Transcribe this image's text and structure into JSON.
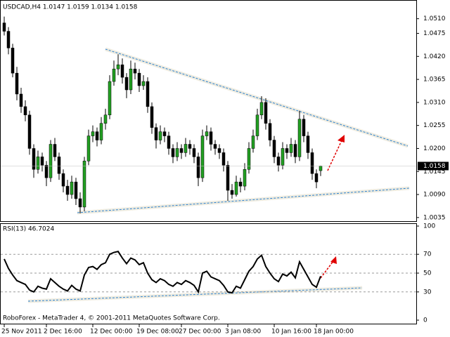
{
  "chart_data": [
    {
      "type": "candlestick",
      "header": "USDCAD,H4  1.0147 1.0159 1.0134 1.0158",
      "categories": [
        "25 Nov 2011",
        null,
        null,
        null,
        null,
        null,
        null,
        null,
        null,
        null,
        "2 Dec 16:00",
        null,
        null,
        null,
        null,
        null,
        null,
        null,
        null,
        null,
        null,
        "12 Dec 00:00",
        null,
        null,
        null,
        null,
        null,
        null,
        null,
        null,
        null,
        null,
        "19 Dec 08:00",
        null,
        null,
        null,
        null,
        null,
        null,
        null,
        null,
        null,
        "27 Dec 00:00",
        null,
        null,
        null,
        null,
        null,
        null,
        null,
        null,
        null,
        null,
        "3 Jan 08:00",
        null,
        null,
        null,
        null,
        null,
        null,
        null,
        null,
        null,
        null,
        "10 Jan 16:00",
        null,
        null,
        null,
        null,
        null,
        null,
        null,
        null,
        null,
        "18 Jan 00:00",
        null
      ],
      "open": [
        1.05,
        1.048,
        1.044,
        1.038,
        1.033,
        1.03,
        1.028,
        1.02,
        1.015,
        1.018,
        1.016,
        1.013,
        1.021,
        1.018,
        1.014,
        1.011,
        1.009,
        1.012,
        1.008,
        1.006,
        1.017,
        1.023,
        1.024,
        1.022,
        1.026,
        1.028,
        1.036,
        1.039,
        1.04,
        1.037,
        1.034,
        1.039,
        1.038,
        1.035,
        1.036,
        1.03,
        1.025,
        1.022,
        1.024,
        1.023,
        1.02,
        1.018,
        1.02,
        1.019,
        1.021,
        1.02,
        1.018,
        1.013,
        1.023,
        1.024,
        1.021,
        1.02,
        1.019,
        1.016,
        1.01,
        1.009,
        1.012,
        1.011,
        1.015,
        1.02,
        1.023,
        1.028,
        1.031,
        1.026,
        1.022,
        1.018,
        1.016,
        1.02,
        1.019,
        1.021,
        1.018,
        1.027,
        1.023,
        1.019,
        1.014,
        1.0147
      ],
      "high": [
        1.0515,
        1.049,
        1.045,
        1.0395,
        1.0345,
        1.0315,
        1.029,
        1.021,
        1.0195,
        1.019,
        1.017,
        1.022,
        1.0225,
        1.019,
        1.015,
        1.0125,
        1.0135,
        1.013,
        1.0095,
        1.018,
        1.0245,
        1.0255,
        1.025,
        1.0275,
        1.0295,
        1.0375,
        1.041,
        1.0425,
        1.0415,
        1.038,
        1.041,
        1.0405,
        1.039,
        1.0375,
        1.037,
        1.031,
        1.026,
        1.0255,
        1.025,
        1.024,
        1.021,
        1.0215,
        1.021,
        1.0225,
        1.022,
        1.021,
        1.019,
        1.0245,
        1.0255,
        1.025,
        1.022,
        1.021,
        1.02,
        1.017,
        1.0115,
        1.0135,
        1.013,
        1.0165,
        1.0215,
        1.0245,
        1.0295,
        1.0325,
        1.032,
        1.027,
        1.023,
        1.019,
        1.0215,
        1.021,
        1.0225,
        1.022,
        1.029,
        1.028,
        1.024,
        1.02,
        1.015,
        1.0159
      ],
      "low": [
        1.047,
        1.0425,
        1.037,
        1.0315,
        1.0285,
        1.0265,
        1.0185,
        1.013,
        1.014,
        1.0145,
        1.011,
        1.012,
        1.017,
        1.0125,
        1.0095,
        1.0075,
        1.008,
        1.0065,
        1.0045,
        1.005,
        1.016,
        1.0215,
        1.0205,
        1.021,
        1.0245,
        1.027,
        1.035,
        1.0375,
        1.0355,
        1.032,
        1.033,
        1.0365,
        1.0335,
        1.034,
        1.0285,
        1.0235,
        1.02,
        1.021,
        1.0215,
        1.0185,
        1.0165,
        1.017,
        1.0175,
        1.018,
        1.0185,
        1.0165,
        1.011,
        1.012,
        1.022,
        1.0195,
        1.0185,
        1.0175,
        1.0145,
        1.0075,
        1.008,
        1.0085,
        1.0095,
        1.01,
        1.014,
        1.019,
        1.022,
        1.027,
        1.0245,
        1.0205,
        1.0165,
        1.0145,
        1.015,
        1.0175,
        1.018,
        1.0165,
        1.017,
        1.0215,
        1.0175,
        1.0125,
        1.0105,
        1.0134
      ],
      "close": [
        1.048,
        1.044,
        1.038,
        1.033,
        1.03,
        1.028,
        1.02,
        1.015,
        1.018,
        1.016,
        1.013,
        1.021,
        1.018,
        1.014,
        1.011,
        1.009,
        1.012,
        1.008,
        1.006,
        1.017,
        1.023,
        1.024,
        1.022,
        1.026,
        1.028,
        1.036,
        1.039,
        1.04,
        1.037,
        1.034,
        1.039,
        1.038,
        1.035,
        1.036,
        1.03,
        1.025,
        1.022,
        1.024,
        1.023,
        1.02,
        1.018,
        1.02,
        1.019,
        1.021,
        1.02,
        1.018,
        1.013,
        1.023,
        1.024,
        1.021,
        1.02,
        1.019,
        1.016,
        1.01,
        1.009,
        1.012,
        1.011,
        1.015,
        1.02,
        1.023,
        1.028,
        1.031,
        1.026,
        1.022,
        1.018,
        1.016,
        1.02,
        1.019,
        1.021,
        1.018,
        1.027,
        1.023,
        1.019,
        1.014,
        1.012,
        1.0158
      ],
      "up_color": "#22a022",
      "down_color": "#000000",
      "ylim": [
        1.0028,
        1.0548
      ],
      "yticks": [
        {
          "value": 1.051,
          "label": "1.0510"
        },
        1.0475,
        {
          "value": 1.042,
          "label": "1.0420"
        },
        1.0365,
        {
          "value": 1.031,
          "label": "1.0310"
        },
        1.0255,
        {
          "value": 1.02,
          "label": "1.0200"
        },
        1.0145,
        {
          "value": 1.009,
          "label": "1.0090"
        },
        1.0035
      ],
      "last_price": 1.0158
    },
    {
      "type": "line",
      "title": "RSI(13) 46.7024",
      "values": [
        65,
        55,
        48,
        42,
        40,
        38,
        32,
        30,
        36,
        34,
        33,
        44,
        40,
        36,
        33,
        31,
        37,
        33,
        31,
        48,
        56,
        57,
        54,
        59,
        61,
        70,
        72,
        73,
        66,
        60,
        66,
        64,
        59,
        61,
        50,
        43,
        40,
        44,
        42,
        38,
        36,
        40,
        38,
        42,
        40,
        37,
        30,
        50,
        52,
        46,
        44,
        42,
        37,
        30,
        29,
        36,
        34,
        43,
        52,
        57,
        65,
        69,
        57,
        50,
        44,
        41,
        49,
        47,
        51,
        45,
        62,
        54,
        46,
        38,
        35,
        46.7024
      ],
      "color": "#000000",
      "ylim": [
        0,
        100
      ],
      "yticks": [
        100,
        70,
        50,
        30,
        0
      ],
      "annotation": "RoboForex - MetaTrader 4, © 2001-2011 MetaQuotes Software Corp."
    }
  ]
}
